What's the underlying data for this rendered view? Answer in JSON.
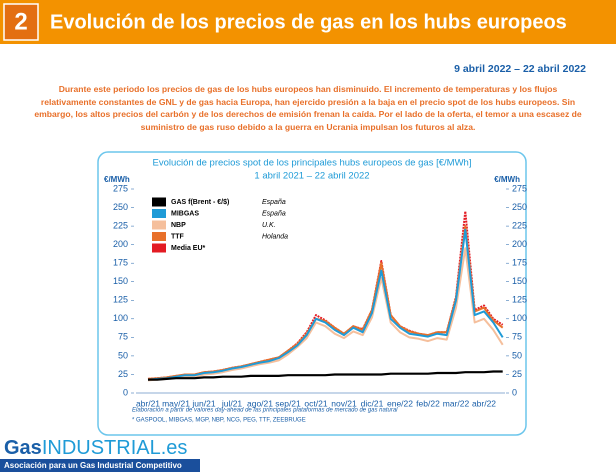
{
  "header": {
    "number": "2",
    "title": "Evolución de los precios de gas en los hubs europeos",
    "date": "9 abril 2022 – 22 abril 2022"
  },
  "intro": "Durante este periodo los precios de gas de los hubs europeos han disminuido. El incremento de temperaturas y los flujos relativamente constantes de GNL y de gas hacia Europa, han ejercido presión a la baja en el precio spot de los hubs europeos. Sin embargo, los altos precios del carbón y de los derechos de emisión frenan la caída. Por el lado de la oferta, el temor a una escasez de suministro de gas ruso debido a la guerra en Ucrania impulsan los futuros al alza.",
  "chart_data": {
    "type": "line",
    "title": "Evolución de precios spot de los principales hubs europeos de gas [€/MWh]",
    "subtitle": "1 abril 2021 – 22 abril 2022",
    "ylabel": "€/MWh",
    "y2label": "€/MWh",
    "categories": [
      "abr/21",
      null,
      null,
      "may/21",
      null,
      null,
      "jun/21",
      null,
      null,
      "jul/21",
      null,
      null,
      "ago/21",
      null,
      null,
      "sep/21",
      null,
      null,
      "oct/21",
      null,
      null,
      "nov/21",
      null,
      null,
      "dic/21",
      null,
      null,
      "ene/22",
      null,
      null,
      "feb/22",
      null,
      null,
      "mar/22",
      null,
      null,
      "abr/22",
      null,
      null
    ],
    "ylim": [
      0,
      275
    ],
    "yticks": [
      0,
      25,
      50,
      75,
      100,
      125,
      150,
      175,
      200,
      225,
      250,
      275
    ],
    "y2lim": [
      0,
      275
    ],
    "y2ticks": [
      0,
      25,
      50,
      75,
      100,
      125,
      150,
      175,
      200,
      225,
      250,
      275
    ],
    "series": [
      {
        "name": "Media EU*",
        "color": "#e31b23",
        "values": [
          19,
          20,
          21,
          23,
          25,
          25,
          28,
          29,
          31,
          34,
          36,
          39,
          42,
          45,
          48,
          57,
          67,
          82,
          105,
          98,
          88,
          80,
          90,
          86,
          112,
          178,
          105,
          90,
          84,
          80,
          78,
          82,
          82,
          130,
          245,
          112,
          118,
          100,
          92
        ]
      },
      {
        "name": "TTF",
        "note": "Holanda",
        "color": "#e8702a",
        "values": [
          19,
          20,
          21,
          23,
          25,
          25,
          28,
          29,
          31,
          34,
          36,
          39,
          42,
          45,
          48,
          57,
          66,
          80,
          100,
          97,
          88,
          80,
          90,
          85,
          112,
          175,
          105,
          90,
          83,
          80,
          78,
          82,
          82,
          128,
          225,
          110,
          115,
          98,
          88
        ]
      },
      {
        "name": "NBP",
        "note": "U.K.",
        "color": "#f5bf9c",
        "values": [
          17,
          18,
          19,
          21,
          22,
          22,
          25,
          26,
          28,
          31,
          33,
          36,
          39,
          41,
          44,
          52,
          62,
          74,
          95,
          90,
          80,
          74,
          83,
          78,
          102,
          155,
          95,
          82,
          75,
          73,
          70,
          74,
          72,
          115,
          195,
          95,
          100,
          85,
          65
        ]
      },
      {
        "name": "MIBGAS",
        "note": "España",
        "color": "#1f9bd7",
        "values": [
          18,
          19,
          20,
          22,
          24,
          24,
          27,
          28,
          30,
          33,
          35,
          38,
          41,
          43,
          47,
          55,
          64,
          78,
          100,
          95,
          85,
          78,
          88,
          82,
          108,
          165,
          100,
          88,
          80,
          78,
          76,
          80,
          78,
          125,
          220,
          105,
          110,
          95,
          75
        ]
      },
      {
        "name": "GAS f(Brent - €/$)",
        "note": "España",
        "color": "#000000",
        "values": [
          18,
          18,
          19,
          20,
          20,
          20,
          21,
          21,
          22,
          22,
          22,
          23,
          23,
          23,
          23,
          24,
          24,
          24,
          24,
          24,
          25,
          25,
          25,
          25,
          25,
          25,
          26,
          26,
          26,
          26,
          26,
          27,
          27,
          27,
          28,
          28,
          28,
          29,
          29
        ]
      }
    ],
    "footnotes": [
      "Elaboración a partir de valores day-ahead de las principales plataformas de mercado de gas natural",
      "* GASPOOL, MIBGAS, MGP, NBP, NCG, PEG, TTF, ZEEBRUGE"
    ]
  },
  "footer": {
    "logo_a": "Gas",
    "logo_b": "INDUSTRIAL",
    "logo_c": ".es",
    "tagline": "Asociación para un Gas Industrial Competitivo"
  }
}
